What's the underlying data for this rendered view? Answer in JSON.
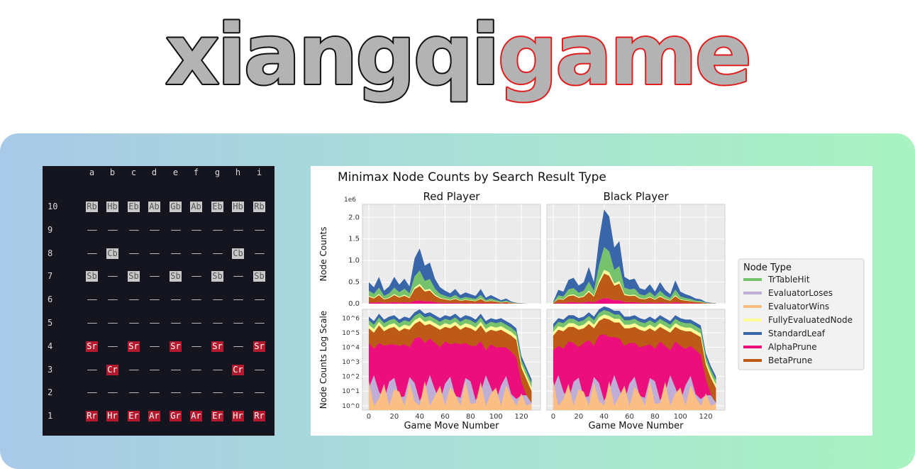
{
  "logo": {
    "part1": "xiangqi",
    "part2": "game",
    "outline_dark": "#111111",
    "outline_red": "#e01e1e",
    "fill": "#b3b3b3"
  },
  "board": {
    "columns": [
      "a",
      "b",
      "c",
      "d",
      "e",
      "f",
      "g",
      "h",
      "i"
    ],
    "empty": "——",
    "rows": [
      {
        "label": "10",
        "cells": [
          "Rb",
          "Hb",
          "Eb",
          "Ab",
          "Gb",
          "Ab",
          "Eb",
          "Hb",
          "Rb"
        ]
      },
      {
        "label": "9",
        "cells": [
          "",
          "",
          "",
          "",
          "",
          "",
          "",
          "",
          ""
        ]
      },
      {
        "label": "8",
        "cells": [
          "",
          "Cb",
          "",
          "",
          "",
          "",
          "",
          "Cb",
          ""
        ]
      },
      {
        "label": "7",
        "cells": [
          "Sb",
          "",
          "Sb",
          "",
          "Sb",
          "",
          "Sb",
          "",
          "Sb"
        ]
      },
      {
        "label": "6",
        "cells": [
          "",
          "",
          "",
          "",
          "",
          "",
          "",
          "",
          ""
        ]
      },
      {
        "label": "5",
        "cells": [
          "",
          "",
          "",
          "",
          "",
          "",
          "",
          "",
          ""
        ]
      },
      {
        "label": "4",
        "cells": [
          "Sr",
          "",
          "Sr",
          "",
          "Sr",
          "",
          "Sr",
          "",
          "Sr"
        ]
      },
      {
        "label": "3",
        "cells": [
          "",
          "Cr",
          "",
          "",
          "",
          "",
          "",
          "Cr",
          ""
        ]
      },
      {
        "label": "2",
        "cells": [
          "",
          "",
          "",
          "",
          "",
          "",
          "",
          "",
          ""
        ]
      },
      {
        "label": "1",
        "cells": [
          "Rr",
          "Hr",
          "Er",
          "Ar",
          "Gr",
          "Ar",
          "Er",
          "Hr",
          "Rr"
        ]
      }
    ],
    "colors": {
      "background": "#15151f",
      "black_piece_bg": "#c9c9c9",
      "red_piece_bg": "#b4192d"
    }
  },
  "chart_data": {
    "type": "area",
    "title": "Minimax Node Counts by Search Result Type",
    "xlabel": "Game Move Number",
    "panels": [
      "Red Player",
      "Black Player"
    ],
    "top_ylabel": "Node Counts",
    "bottom_ylabel": "Node Counts Log Scale",
    "top_scale_note": "1e6",
    "top_ylim": [
      0,
      2.3
    ],
    "top_yticks": [
      "0.0",
      "0.5",
      "1.0",
      "1.5",
      "2.0"
    ],
    "bottom_yticks": [
      "10^0",
      "10^1",
      "10^2",
      "10^3",
      "10^4",
      "10^5",
      "10^6"
    ],
    "xlim": [
      -5,
      135
    ],
    "xticks": [
      0,
      20,
      40,
      60,
      80,
      100,
      120
    ],
    "legend": {
      "title": "Node Type",
      "placement": "right",
      "items": [
        {
          "name": "TrTableHit",
          "color": "#77c26d"
        },
        {
          "name": "EvaluatorLoses",
          "color": "#bfaed6"
        },
        {
          "name": "EvaluatorWins",
          "color": "#fbbf86"
        },
        {
          "name": "FullyEvaluatedNode",
          "color": "#fefe98"
        },
        {
          "name": "StandardLeaf",
          "color": "#3866a8"
        },
        {
          "name": "AlphaPrune",
          "color": "#ec0e7d"
        },
        {
          "name": "BetaPrune",
          "color": "#bd5a17"
        }
      ]
    },
    "x": [
      0,
      4,
      8,
      12,
      16,
      20,
      24,
      28,
      32,
      36,
      40,
      44,
      48,
      52,
      56,
      60,
      64,
      68,
      72,
      76,
      80,
      84,
      88,
      92,
      96,
      100,
      104,
      108,
      112,
      116,
      120,
      124,
      128
    ],
    "red_total_millions": [
      0.5,
      0.38,
      0.62,
      0.3,
      0.4,
      0.62,
      0.44,
      0.58,
      0.4,
      1.05,
      1.28,
      0.88,
      0.95,
      0.58,
      0.38,
      0.3,
      0.24,
      0.34,
      0.2,
      0.26,
      0.22,
      0.18,
      0.34,
      0.14,
      0.2,
      0.14,
      0.08,
      0.12,
      0.05,
      0.02,
      0.01,
      0.0,
      0.0
    ],
    "black_total_millions": [
      0.05,
      0.32,
      0.28,
      0.55,
      0.6,
      0.42,
      0.5,
      0.85,
      0.5,
      1.48,
      2.18,
      2.02,
      1.3,
      1.45,
      0.62,
      0.55,
      0.58,
      0.36,
      0.32,
      0.45,
      0.28,
      0.5,
      0.32,
      0.22,
      0.54,
      0.28,
      0.22,
      0.18,
      0.12,
      0.1,
      0.04,
      0.02,
      0.01
    ],
    "log_stack_exponents": {
      "red_beta_top": [
        5.3,
        5.0,
        5.5,
        5.1,
        5.3,
        5.4,
        5.1,
        5.3,
        5.2,
        5.6,
        5.8,
        5.5,
        5.6,
        5.4,
        5.2,
        5.4,
        5.3,
        5.5,
        5.2,
        5.4,
        5.3,
        5.1,
        5.5,
        5.0,
        5.2,
        5.1,
        5.2,
        5.0,
        4.8,
        4.5,
        2.6,
        1.8,
        1.0
      ],
      "black_beta_top": [
        4.8,
        5.2,
        5.1,
        5.4,
        5.4,
        5.2,
        5.3,
        5.6,
        5.3,
        5.8,
        6.0,
        5.9,
        5.7,
        5.7,
        5.3,
        5.3,
        5.4,
        5.2,
        5.1,
        5.3,
        5.1,
        5.4,
        5.2,
        5.0,
        5.4,
        5.2,
        5.1,
        5.1,
        4.9,
        4.7,
        2.8,
        1.9,
        1.2
      ]
    }
  }
}
